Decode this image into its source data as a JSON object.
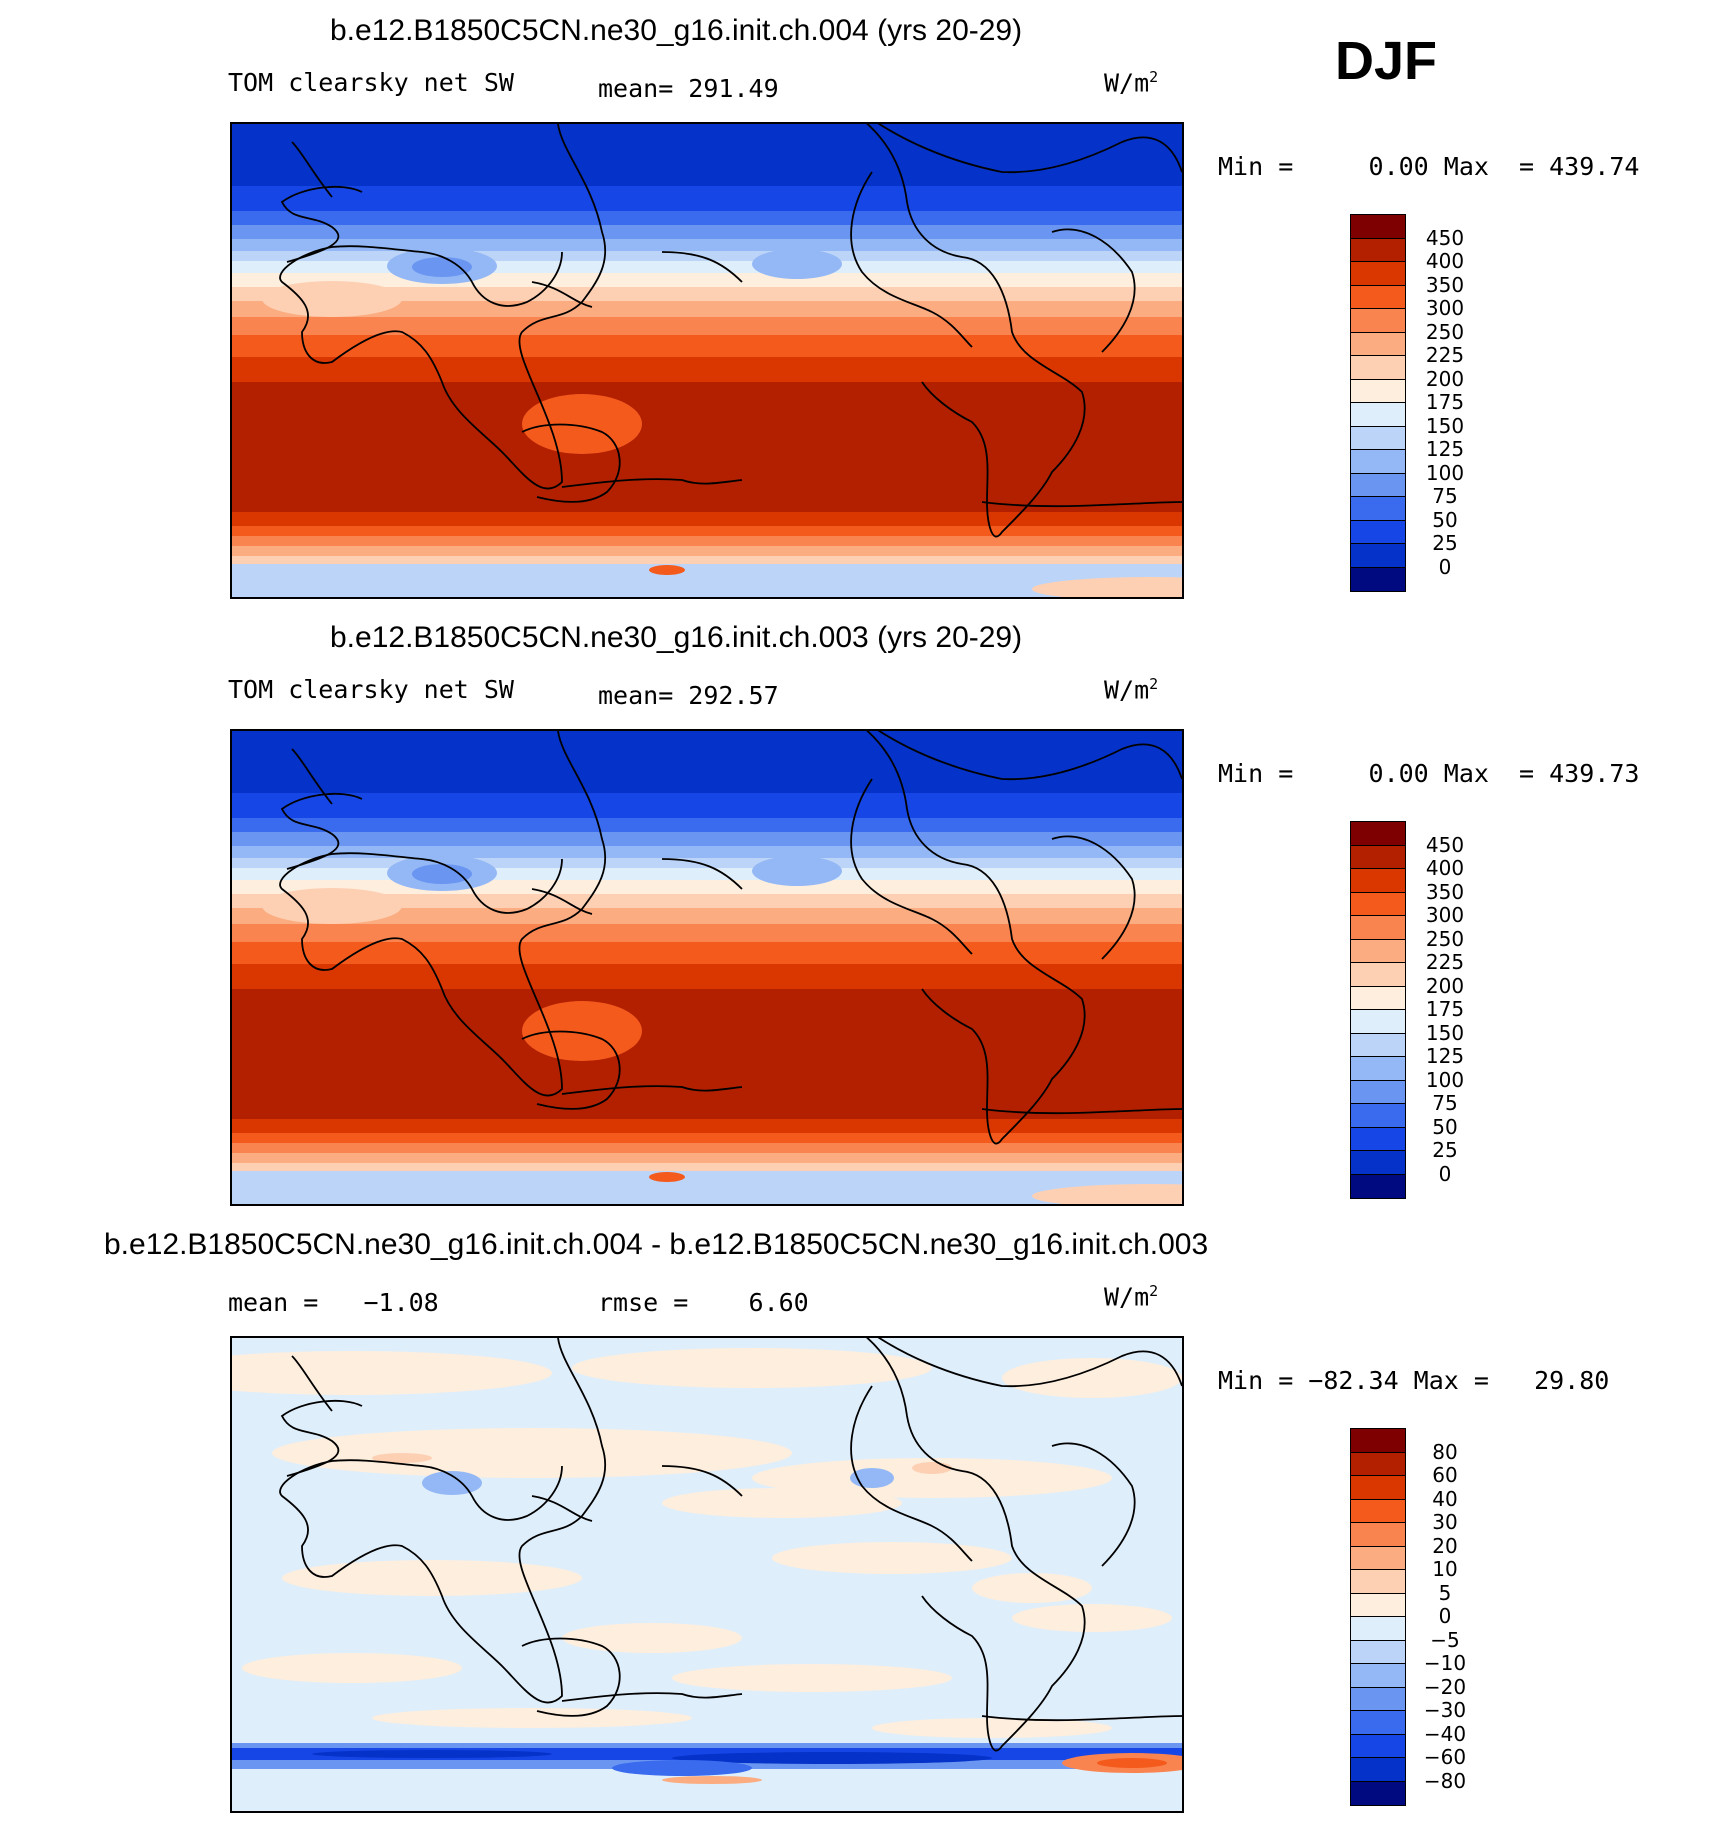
{
  "season": "DJF",
  "units": "W/m",
  "units_sup": "2",
  "panels": [
    {
      "title": "b.e12.B1850C5CN.ne30_g16.init.ch.004 (yrs 20-29)",
      "variable": "TOM clearsky net SW",
      "stat1": "mean= 291.49",
      "minmax": "Min =     0.00 Max  = 439.74",
      "levels": [
        "450",
        "400",
        "350",
        "300",
        "250",
        "225",
        "200",
        "175",
        "150",
        "125",
        "100",
        "75",
        "50",
        "25",
        "0"
      ],
      "colors": [
        "#7f0000",
        "#b22000",
        "#d93600",
        "#f45a1c",
        "#fa8450",
        "#fbac80",
        "#fdd0b4",
        "#fdeede",
        "#dfeefb",
        "#bcd4f8",
        "#94b8f5",
        "#6a96f2",
        "#3a6aee",
        "#1646e6",
        "#0532c8",
        "#000a80"
      ]
    },
    {
      "title": "b.e12.B1850C5CN.ne30_g16.init.ch.003 (yrs 20-29)",
      "variable": "TOM clearsky net SW",
      "stat1": "mean= 292.57",
      "minmax": "Min =     0.00 Max  = 439.73",
      "levels": [
        "450",
        "400",
        "350",
        "300",
        "250",
        "225",
        "200",
        "175",
        "150",
        "125",
        "100",
        "75",
        "50",
        "25",
        "0"
      ],
      "colors": [
        "#7f0000",
        "#b22000",
        "#d93600",
        "#f45a1c",
        "#fa8450",
        "#fbac80",
        "#fdd0b4",
        "#fdeede",
        "#dfeefb",
        "#bcd4f8",
        "#94b8f5",
        "#6a96f2",
        "#3a6aee",
        "#1646e6",
        "#0532c8",
        "#000a80"
      ]
    },
    {
      "title": "b.e12.B1850C5CN.ne30_g16.init.ch.004 - b.e12.B1850C5CN.ne30_g16.init.ch.003",
      "variable": "",
      "stat1": "mean =   −1.08",
      "stat2": "rmse =    6.60",
      "minmax": "Min = −82.34 Max =   29.80",
      "levels": [
        "80",
        "60",
        "40",
        "30",
        "20",
        "10",
        "5",
        "0",
        "−5",
        "−10",
        "−20",
        "−30",
        "−40",
        "−60",
        "−80"
      ],
      "colors": [
        "#7f0000",
        "#b22000",
        "#d93600",
        "#f45a1c",
        "#fa8450",
        "#fbac80",
        "#fdd0b4",
        "#fdeede",
        "#dfeefb",
        "#bcd4f8",
        "#94b8f5",
        "#6a96f2",
        "#3a6aee",
        "#1646e6",
        "#0532c8",
        "#000a80"
      ]
    }
  ]
}
